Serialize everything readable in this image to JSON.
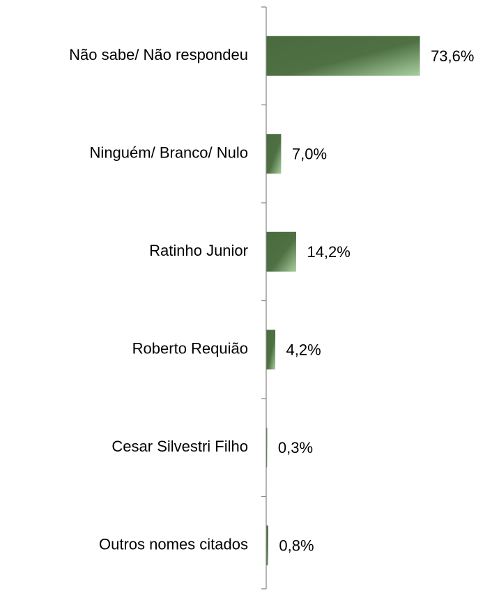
{
  "chart_data": {
    "type": "bar",
    "orientation": "horizontal",
    "categories": [
      "Não sabe/ Não respondeu",
      "Ninguém/ Branco/ Nulo",
      "Ratinho Junior",
      "Roberto Requião",
      "Cesar Silvestri Filho",
      "Outros nomes citados"
    ],
    "values": [
      73.6,
      7.0,
      14.2,
      4.2,
      0.3,
      0.8
    ],
    "value_labels": [
      "73,6%",
      "7,0%",
      "14,2%",
      "4,2%",
      "0,3%",
      "0,8%"
    ],
    "color": "#4a6b3f"
  }
}
